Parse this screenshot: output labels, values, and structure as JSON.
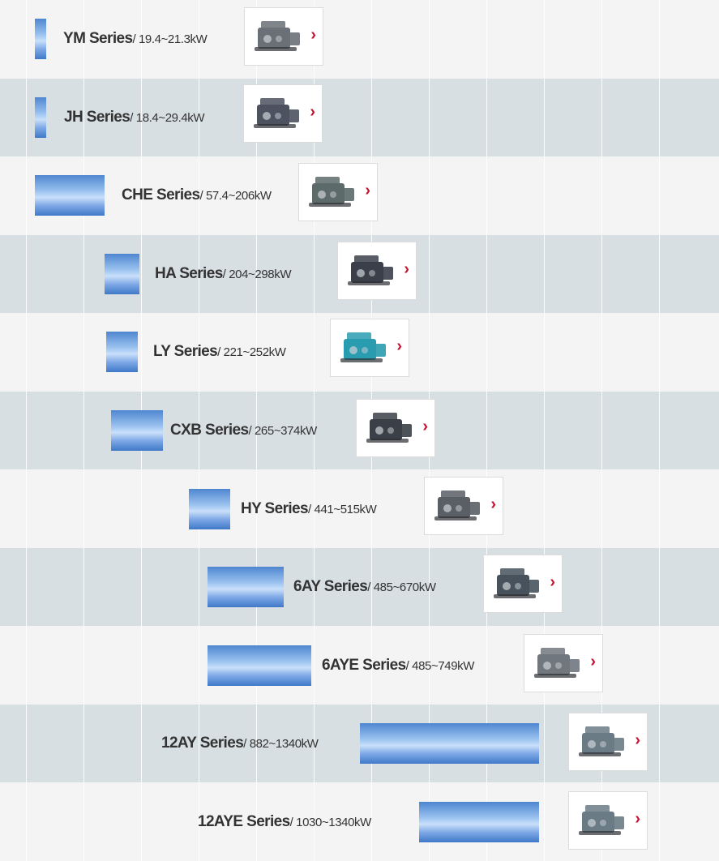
{
  "chart_data": {
    "type": "bar",
    "orientation": "horizontal-range",
    "unit": "kW",
    "series_list": [
      {
        "name": "YM Series",
        "range_text": "/ 19.4~21.3kW",
        "min": 19.4,
        "max": 21.3,
        "engine_color": "#6a7077",
        "icon": "engine-icon"
      },
      {
        "name": "JH Series",
        "range_text": "/ 18.4~29.4kW",
        "min": 18.4,
        "max": 29.4,
        "engine_color": "#4c5260",
        "icon": "engine-icon"
      },
      {
        "name": "CHE Series",
        "range_text": "/ 57.4~206kW",
        "min": 57.4,
        "max": 206,
        "engine_color": "#5d6a6a",
        "icon": "engine-icon"
      },
      {
        "name": "HA Series",
        "range_text": "/ 204~298kW",
        "min": 204,
        "max": 298,
        "engine_color": "#3a3f4a",
        "icon": "engine-icon"
      },
      {
        "name": "LY Series",
        "range_text": "/ 221~252kW",
        "min": 221,
        "max": 252,
        "engine_color": "#2a9cb0",
        "icon": "engine-icon"
      },
      {
        "name": "CXB Series",
        "range_text": "/ 265~374kW",
        "min": 265,
        "max": 374,
        "engine_color": "#3b4048",
        "icon": "engine-icon"
      },
      {
        "name": "HY Series",
        "range_text": "/ 441~515kW",
        "min": 441,
        "max": 515,
        "engine_color": "#5a5f66",
        "icon": "engine-icon"
      },
      {
        "name": "6AY Series",
        "range_text": "/ 485~670kW",
        "min": 485,
        "max": 670,
        "engine_color": "#47525c",
        "icon": "engine-icon"
      },
      {
        "name": "6AYE Series",
        "range_text": "/ 485~749kW",
        "min": 485,
        "max": 749,
        "engine_color": "#70777e",
        "icon": "engine-icon"
      },
      {
        "name": "12AY Series",
        "range_text": "/ 882~1340kW",
        "min": 882,
        "max": 1340,
        "engine_color": "#6b7b86",
        "icon": "engine-icon"
      },
      {
        "name": "12AYE Series",
        "range_text": "/ 1030~1340kW",
        "min": 1030,
        "max": 1340,
        "engine_color": "#6b7b86",
        "icon": "engine-icon"
      }
    ]
  },
  "colors": {
    "row_light": "#f4f4f4",
    "row_dark": "#d8dfe3",
    "arrow": "#c8102e",
    "text": "#333333"
  },
  "thumb_arrow_glyph": "›"
}
